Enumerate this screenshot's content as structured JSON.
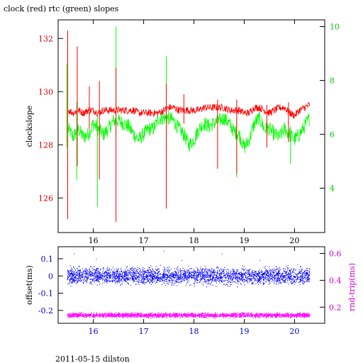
{
  "title": "clock (red) rtc (green) slopes",
  "footer": "2011-05-15 dilston",
  "colors": {
    "clock": "#ff0000",
    "rtc": "#00ff00",
    "offset": "#0000ff",
    "rndtrip": "#ff00ff",
    "axis_top_left": "#cc0000",
    "axis_top_right": "#00cc00",
    "axis_bottom_left": "#0000cc",
    "axis_bottom_right": "#cc00cc",
    "frame": "#000000"
  },
  "chart_data": [
    {
      "type": "line",
      "title": "clock (red) rtc (green) slopes",
      "xlabel": "",
      "ylabel": "clockslope",
      "y2label": "",
      "xlim": [
        15.3,
        20.6
      ],
      "ylim": [
        124.7,
        132.7
      ],
      "y2lim": [
        2.35,
        10.25
      ],
      "xticks": [
        "16",
        "17",
        "18",
        "19",
        "20"
      ],
      "yticks": [
        "126",
        "128",
        "130",
        "132"
      ],
      "y2ticks": [
        "4",
        "6",
        "8",
        "10"
      ],
      "series": [
        {
          "name": "clock (red)",
          "axis": "left",
          "x": [
            15.5,
            15.6,
            15.7,
            15.8,
            15.9,
            16.0,
            16.1,
            16.2,
            16.3,
            16.4,
            16.5,
            16.6,
            16.7,
            16.8,
            16.9,
            17.0,
            17.1,
            17.2,
            17.3,
            17.4,
            17.5,
            17.6,
            17.7,
            17.8,
            17.9,
            18.0,
            18.1,
            18.2,
            18.3,
            18.4,
            18.5,
            18.6,
            18.7,
            18.8,
            18.9,
            19.0,
            19.1,
            19.2,
            19.3,
            19.4,
            19.5,
            19.6,
            19.7,
            19.8,
            19.9,
            20.0,
            20.1,
            20.2,
            20.3
          ],
          "values": [
            129.3,
            129.2,
            129.3,
            129.2,
            129.3,
            129.3,
            129.2,
            129.3,
            129.3,
            129.3,
            129.3,
            129.3,
            129.3,
            129.3,
            129.2,
            129.2,
            129.2,
            129.2,
            129.2,
            129.3,
            129.4,
            129.4,
            129.3,
            129.3,
            129.3,
            129.3,
            129.3,
            129.4,
            129.4,
            129.4,
            129.4,
            129.4,
            129.3,
            129.3,
            129.3,
            129.2,
            129.2,
            129.4,
            129.4,
            129.3,
            129.2,
            129.3,
            129.4,
            129.4,
            129.2,
            129.1,
            129.3,
            129.4,
            129.5
          ],
          "spikes": [
            {
              "x": 15.49,
              "high": 132.3,
              "low": 125.2
            },
            {
              "x": 15.68,
              "high": 131.7,
              "low": 127.2
            },
            {
              "x": 15.92,
              "high": 130.2,
              "low": 128.6
            },
            {
              "x": 16.12,
              "high": 130.4,
              "low": 126.7
            },
            {
              "x": 16.45,
              "high": 130.9,
              "low": 125.1
            },
            {
              "x": 17.45,
              "high": 130.3,
              "low": 125.6
            },
            {
              "x": 17.8,
              "high": 129.9,
              "low": 128.8
            },
            {
              "x": 18.47,
              "high": 129.7,
              "low": 127.1
            },
            {
              "x": 18.85,
              "high": 129.7,
              "low": 126.9
            },
            {
              "x": 19.45,
              "high": 129.5,
              "low": 127.9
            },
            {
              "x": 19.88,
              "high": 129.6,
              "low": 128.1
            }
          ]
        },
        {
          "name": "rtc (green)",
          "axis": "right",
          "x": [
            15.5,
            15.6,
            15.7,
            15.8,
            15.9,
            16.0,
            16.1,
            16.2,
            16.3,
            16.4,
            16.5,
            16.6,
            16.7,
            16.8,
            16.9,
            17.0,
            17.1,
            17.2,
            17.3,
            17.4,
            17.5,
            17.6,
            17.7,
            17.8,
            17.9,
            18.0,
            18.1,
            18.2,
            18.3,
            18.4,
            18.5,
            18.6,
            18.7,
            18.8,
            18.9,
            19.0,
            19.1,
            19.2,
            19.3,
            19.4,
            19.5,
            19.6,
            19.7,
            19.8,
            19.9,
            20.0,
            20.1,
            20.2,
            20.3
          ],
          "values": [
            6.2,
            5.9,
            6.2,
            5.9,
            6.0,
            6.4,
            6.2,
            6.0,
            6.2,
            6.5,
            6.5,
            6.4,
            6.3,
            6.0,
            5.8,
            6.0,
            6.2,
            6.2,
            6.6,
            6.6,
            6.6,
            6.5,
            6.2,
            6.0,
            5.6,
            5.8,
            6.2,
            6.4,
            6.3,
            6.4,
            6.5,
            6.6,
            6.4,
            6.1,
            6.0,
            5.5,
            5.8,
            6.4,
            6.6,
            6.2,
            6.2,
            6.0,
            5.9,
            6.2,
            6.0,
            5.8,
            6.0,
            6.3,
            6.6
          ],
          "spikes": [
            {
              "x": 15.47,
              "high": 8.6,
              "low": 5.5
            },
            {
              "x": 15.67,
              "high": 7.2,
              "low": 4.3
            },
            {
              "x": 16.08,
              "high": 6.7,
              "low": 3.3
            },
            {
              "x": 16.45,
              "high": 10.0,
              "low": 5.9
            },
            {
              "x": 17.45,
              "high": 8.9,
              "low": 3.3
            },
            {
              "x": 18.85,
              "high": 6.5,
              "low": 4.4
            },
            {
              "x": 19.92,
              "high": 6.3,
              "low": 4.9
            }
          ]
        }
      ]
    },
    {
      "type": "scatter",
      "xlabel": "",
      "ylabel": "offset(ms)",
      "y2label": "rnd-trip(ms)",
      "xlim": [
        15.3,
        20.6
      ],
      "ylim": [
        -0.275,
        0.17
      ],
      "y2lim": [
        0.08,
        0.65
      ],
      "xticks": [
        "16",
        "17",
        "18",
        "19",
        "20"
      ],
      "yticks": [
        "0.1",
        "0",
        "-0.1",
        "-0.2"
      ],
      "y2ticks": [
        "0.6",
        "0.4",
        "0.2"
      ],
      "series": [
        {
          "name": "offset",
          "axis": "left",
          "x_range": [
            15.48,
            20.3
          ],
          "center": 0.0,
          "spread": 0.035
        },
        {
          "name": "rnd-trip",
          "axis": "right",
          "x_range": [
            15.48,
            20.3
          ],
          "center": 0.14,
          "spread": 0.012,
          "outliers_high": [
            {
              "x": 15.62,
              "y": 0.6
            },
            {
              "x": 16.05,
              "y": 0.56
            },
            {
              "x": 16.55,
              "y": 0.47
            },
            {
              "x": 17.4,
              "y": 0.62
            },
            {
              "x": 17.75,
              "y": 0.55
            },
            {
              "x": 18.1,
              "y": 0.46
            },
            {
              "x": 18.55,
              "y": 0.6
            },
            {
              "x": 18.95,
              "y": 0.45
            },
            {
              "x": 19.3,
              "y": 0.55
            },
            {
              "x": 19.7,
              "y": 0.48
            },
            {
              "x": 20.05,
              "y": 0.52
            }
          ]
        }
      ]
    }
  ]
}
